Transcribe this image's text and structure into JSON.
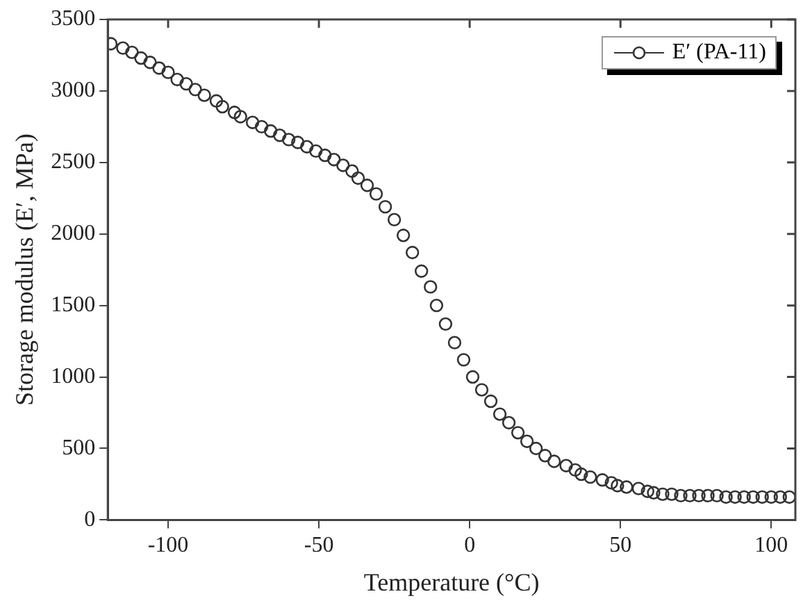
{
  "chart_data": {
    "type": "scatter",
    "xlabel": "Temperature (°C)",
    "ylabel": "Storage modulus (E′, MPa)",
    "xlim": [
      -120,
      108
    ],
    "xticks": [
      -100,
      -50,
      0,
      50,
      100
    ],
    "ylim": [
      0,
      3500
    ],
    "yticks": [
      0,
      500,
      1000,
      1500,
      2000,
      2500,
      3000,
      3500
    ],
    "grid": false,
    "legend": "top right",
    "marker": "circle",
    "series": [
      {
        "name": "E′ (PA-11)",
        "color": "#333333",
        "x": [
          -119,
          -115,
          -112,
          -109,
          -106,
          -103,
          -100,
          -97,
          -94,
          -91,
          -88,
          -84,
          -82,
          -78,
          -76,
          -72,
          -69,
          -66,
          -63,
          -60,
          -57,
          -54,
          -51,
          -48,
          -45,
          -42,
          -39,
          -37,
          -34,
          -31,
          -28,
          -25,
          -22,
          -19,
          -16,
          -13,
          -11,
          -8,
          -5,
          -2,
          1,
          4,
          7,
          10,
          13,
          16,
          19,
          22,
          25,
          28,
          32,
          35,
          37,
          40,
          44,
          47,
          49,
          52,
          56,
          59,
          61,
          64,
          67,
          70,
          73,
          76,
          79,
          82,
          85,
          88,
          91,
          94,
          97,
          100,
          103,
          106
        ],
        "values": [
          3330,
          3300,
          3270,
          3230,
          3200,
          3160,
          3130,
          3080,
          3050,
          3010,
          2970,
          2930,
          2890,
          2850,
          2820,
          2780,
          2750,
          2720,
          2690,
          2660,
          2640,
          2610,
          2580,
          2550,
          2520,
          2480,
          2440,
          2390,
          2340,
          2280,
          2190,
          2100,
          1990,
          1870,
          1740,
          1630,
          1500,
          1370,
          1240,
          1120,
          1000,
          910,
          830,
          740,
          680,
          610,
          550,
          500,
          450,
          410,
          380,
          350,
          320,
          300,
          280,
          260,
          240,
          230,
          220,
          200,
          190,
          180,
          180,
          170,
          170,
          170,
          170,
          170,
          160,
          160,
          160,
          160,
          160,
          160,
          160,
          160
        ]
      }
    ]
  }
}
